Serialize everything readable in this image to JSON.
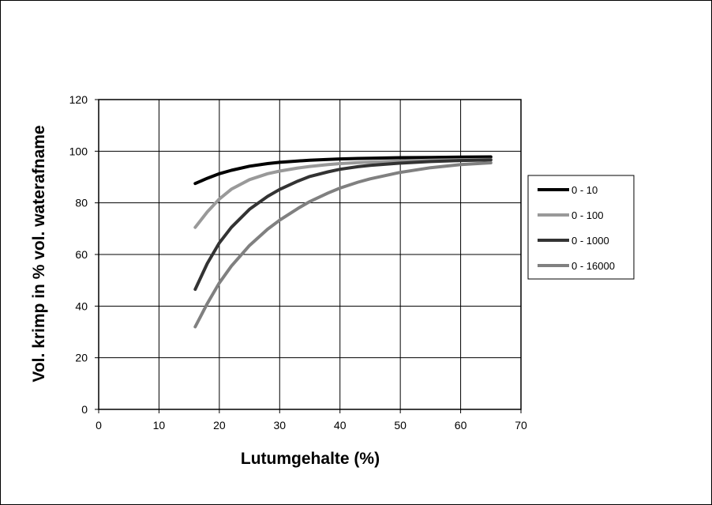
{
  "chart_data": {
    "type": "line",
    "title": "",
    "xlabel": "Lutumgehalte (%)",
    "ylabel": "Vol. krimp in % vol. waterafname",
    "xlim": [
      0,
      70
    ],
    "ylim": [
      0,
      120
    ],
    "x_ticks": [
      0,
      10,
      20,
      30,
      40,
      50,
      60,
      70
    ],
    "y_ticks": [
      0,
      20,
      40,
      60,
      80,
      100,
      120
    ],
    "grid": true,
    "legend_position": "right",
    "x": [
      16,
      18,
      20,
      22,
      25,
      28,
      30,
      33,
      35,
      38,
      40,
      43,
      45,
      50,
      55,
      60,
      65
    ],
    "series": [
      {
        "name": "0 - 10",
        "color": "#000000",
        "values": [
          87.5,
          89.5,
          91.3,
          92.6,
          94.2,
          95.2,
          95.7,
          96.2,
          96.5,
          96.8,
          97.0,
          97.2,
          97.3,
          97.5,
          97.6,
          97.7,
          97.8
        ]
      },
      {
        "name": "0 - 100",
        "color": "#999999",
        "values": [
          70.5,
          76.5,
          81.5,
          85.3,
          89.0,
          91.3,
          92.3,
          93.5,
          94.1,
          94.8,
          95.2,
          95.6,
          95.8,
          96.2,
          96.5,
          96.7,
          96.8
        ]
      },
      {
        "name": "0 - 1000",
        "color": "#333333",
        "values": [
          46.5,
          56.5,
          64.5,
          70.5,
          77.5,
          82.5,
          85.2,
          88.4,
          90.2,
          92.0,
          93.0,
          94.0,
          94.5,
          95.4,
          96.0,
          96.4,
          96.6
        ]
      },
      {
        "name": "0 - 16000",
        "color": "#808080",
        "values": [
          32.0,
          41.0,
          49.0,
          55.5,
          63.5,
          69.8,
          73.3,
          77.8,
          80.5,
          83.8,
          85.7,
          88.0,
          89.3,
          91.8,
          93.6,
          94.8,
          95.5
        ]
      }
    ]
  }
}
